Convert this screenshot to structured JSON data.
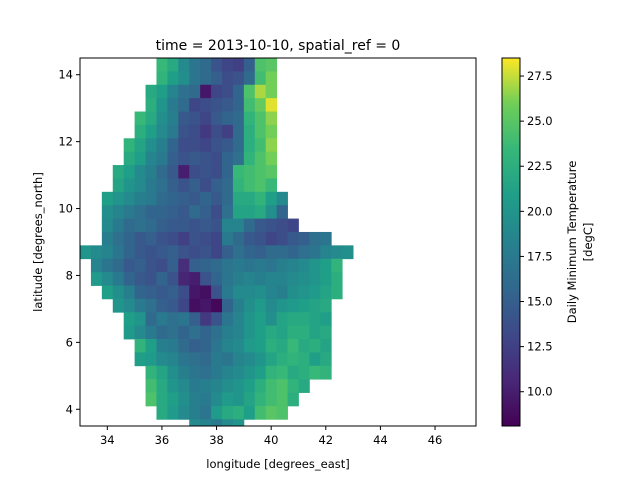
{
  "chart_data": {
    "type": "heatmap",
    "title": "time = 2013-10-10, spatial_ref = 0",
    "xlabel": "longitude [degrees_east]",
    "ylabel": "latitude [degrees_north]",
    "colorbar_label": "Daily Minimum Temperature",
    "colorbar_unit": "[degC]",
    "colormap": "viridis",
    "vmin": 8.1,
    "vmax": 28.5,
    "xlim": [
      33.0,
      47.5
    ],
    "ylim": [
      3.5,
      14.5
    ],
    "x_ticks": [
      34,
      36,
      38,
      40,
      42,
      44,
      46
    ],
    "y_ticks": [
      4,
      6,
      8,
      10,
      12,
      14
    ],
    "colorbar_ticks": [
      10.0,
      12.5,
      15.0,
      17.5,
      20.0,
      22.5,
      25.0,
      27.5
    ],
    "colorbar_tick_labels": [
      "10.0",
      "12.5",
      "15.0",
      "17.5",
      "20.0",
      "22.5",
      "25.0",
      "27.5"
    ],
    "grid_x0": 33.0,
    "grid_y0": 14.5,
    "cell_size": 0.4,
    "rows": [
      {
        "start": 7,
        "values": [
          23.5,
          22.0,
          19.0,
          17.0,
          16.0,
          14.0,
          13.0,
          12.5,
          15.0,
          24.5,
          25.0
        ]
      },
      {
        "start": 7,
        "values": [
          23.0,
          21.0,
          19.5,
          17.0,
          16.0,
          15.0,
          13.5,
          14.0,
          16.0,
          24.0,
          26.0
        ]
      },
      {
        "start": 6,
        "values": [
          22.0,
          21.0,
          18.5,
          16.5,
          16.0,
          9.5,
          13.0,
          13.5,
          15.5,
          24.5,
          27.0,
          26.0
        ]
      },
      {
        "start": 6,
        "values": [
          22.5,
          20.0,
          17.5,
          16.0,
          13.0,
          13.5,
          14.0,
          14.5,
          15.5,
          24.0,
          25.5,
          28.0
        ]
      },
      {
        "start": 5,
        "values": [
          23.5,
          22.0,
          19.5,
          18.0,
          14.5,
          14.0,
          13.0,
          14.5,
          15.5,
          16.0,
          23.0,
          24.5,
          26.5
        ]
      },
      {
        "start": 5,
        "values": [
          22.5,
          21.0,
          19.0,
          17.5,
          14.0,
          13.5,
          12.0,
          13.5,
          12.5,
          16.0,
          22.5,
          24.5,
          26.0
        ]
      },
      {
        "start": 4,
        "values": [
          23.0,
          21.5,
          19.5,
          18.0,
          15.5,
          13.5,
          13.5,
          13.0,
          14.0,
          14.5,
          16.0,
          22.5,
          24.0,
          26.5
        ]
      },
      {
        "start": 4,
        "values": [
          22.0,
          21.0,
          18.5,
          17.5,
          15.0,
          14.0,
          14.5,
          14.0,
          13.5,
          15.5,
          16.5,
          23.0,
          24.5,
          26.0
        ]
      },
      {
        "start": 3,
        "values": [
          22.0,
          21.0,
          19.0,
          18.0,
          16.0,
          14.5,
          10.0,
          13.5,
          14.0,
          13.5,
          15.5,
          23.5,
          24.0,
          24.5,
          25.0
        ]
      },
      {
        "start": 3,
        "values": [
          21.5,
          20.0,
          19.0,
          17.5,
          16.5,
          15.0,
          14.0,
          15.0,
          13.5,
          15.0,
          16.0,
          23.0,
          24.0,
          24.5,
          23.5
        ]
      },
      {
        "start": 2,
        "values": [
          21.0,
          20.0,
          19.0,
          18.0,
          17.5,
          16.0,
          15.5,
          15.0,
          14.5,
          15.5,
          14.5,
          16.0,
          22.0,
          22.0,
          23.0,
          21.0,
          19.0
        ]
      },
      {
        "start": 2,
        "values": [
          19.5,
          18.5,
          17.5,
          16.5,
          15.5,
          15.5,
          15.0,
          14.5,
          16.0,
          15.0,
          13.5,
          16.5,
          21.5,
          21.5,
          22.0,
          19.5,
          15.5
        ]
      },
      {
        "start": 2,
        "values": [
          19.0,
          17.5,
          16.0,
          16.5,
          16.0,
          15.0,
          14.5,
          14.5,
          14.0,
          14.5,
          14.0,
          18.5,
          18.5,
          16.0,
          14.5,
          14.0,
          13.5,
          13.0
        ]
      },
      {
        "start": 2,
        "values": [
          18.0,
          16.5,
          15.5,
          14.5,
          15.0,
          14.0,
          13.5,
          12.5,
          14.0,
          13.5,
          13.0,
          17.5,
          16.0,
          14.5,
          14.0,
          13.0,
          13.5,
          14.5,
          15.0,
          16.5,
          17.0
        ]
      },
      {
        "start": 0,
        "values": [
          20.0,
          19.0,
          18.5,
          17.0,
          15.5,
          14.5,
          14.0,
          14.5,
          15.0,
          14.0,
          13.5,
          14.0,
          13.0,
          15.0,
          16.5,
          15.5,
          15.0,
          16.0,
          16.0,
          15.5,
          16.5,
          17.0,
          18.5,
          19.0,
          19.5
        ]
      },
      {
        "start": 1,
        "values": [
          18.5,
          17.0,
          16.0,
          14.5,
          15.0,
          14.0,
          13.5,
          15.0,
          11.0,
          15.0,
          15.5,
          16.0,
          17.0,
          17.5,
          17.0,
          17.5,
          17.0,
          18.0,
          18.5,
          19.0,
          20.0,
          21.0,
          23.0
        ]
      },
      {
        "start": 1,
        "values": [
          20.5,
          19.0,
          17.5,
          15.5,
          14.5,
          14.0,
          15.5,
          14.0,
          10.5,
          10.0,
          14.0,
          15.5,
          17.0,
          18.0,
          18.5,
          18.0,
          18.5,
          18.5,
          19.0,
          19.5,
          20.0,
          21.0,
          22.5
        ]
      },
      {
        "start": 2,
        "values": [
          21.0,
          19.5,
          18.0,
          15.5,
          15.0,
          14.5,
          15.0,
          13.5,
          9.5,
          9.0,
          14.0,
          17.5,
          19.0,
          19.0,
          19.5,
          18.5,
          18.0,
          19.5,
          20.0,
          20.5,
          21.5,
          22.5
        ]
      },
      {
        "start": 3,
        "values": [
          20.0,
          19.0,
          17.5,
          16.5,
          15.0,
          14.5,
          13.0,
          9.0,
          9.5,
          8.5,
          15.5,
          18.0,
          19.5,
          20.5,
          19.0,
          20.0,
          20.5,
          21.0,
          21.5,
          22.0
        ]
      },
      {
        "start": 4,
        "values": [
          21.0,
          20.0,
          16.0,
          17.5,
          16.5,
          17.0,
          15.0,
          12.0,
          14.0,
          17.0,
          18.5,
          20.0,
          21.0,
          19.5,
          21.5,
          22.0,
          22.0,
          21.5,
          21.0
        ]
      },
      {
        "start": 4,
        "values": [
          20.5,
          19.0,
          17.5,
          16.0,
          16.5,
          15.5,
          16.5,
          15.5,
          16.5,
          18.0,
          18.5,
          20.0,
          21.0,
          22.0,
          21.5,
          22.5,
          22.5,
          21.5,
          22.0
        ]
      },
      {
        "start": 5,
        "values": [
          23.0,
          21.0,
          18.0,
          17.5,
          16.0,
          15.0,
          15.5,
          17.0,
          18.5,
          19.0,
          20.5,
          21.0,
          22.5,
          22.0,
          23.5,
          22.0,
          22.5,
          21.5
        ]
      },
      {
        "start": 5,
        "values": [
          21.0,
          20.5,
          19.0,
          18.5,
          17.0,
          16.5,
          16.0,
          17.5,
          17.0,
          18.5,
          19.0,
          20.0,
          21.5,
          22.5,
          23.0,
          22.5,
          21.0,
          22.0
        ]
      },
      {
        "start": 6,
        "values": [
          23.0,
          21.5,
          19.5,
          18.0,
          17.0,
          16.5,
          17.5,
          18.5,
          19.0,
          20.0,
          21.0,
          23.0,
          23.5,
          22.0,
          22.5,
          23.5,
          23.0
        ]
      },
      {
        "start": 6,
        "values": [
          24.0,
          22.0,
          20.0,
          19.0,
          17.5,
          18.0,
          18.5,
          19.5,
          20.0,
          21.0,
          22.5,
          24.0,
          24.5,
          23.0,
          22.0
        ]
      },
      {
        "start": 6,
        "values": [
          24.5,
          22.0,
          21.0,
          19.5,
          18.0,
          17.5,
          19.0,
          20.5,
          20.0,
          21.5,
          23.0,
          24.0,
          24.5,
          22.5
        ]
      },
      {
        "start": 7,
        "values": [
          22.0,
          20.5,
          19.0,
          18.0,
          17.0,
          20.5,
          22.0,
          22.5,
          21.0,
          24.0,
          25.0,
          24.5
        ]
      },
      {
        "start": 10,
        "values": [
          19.0,
          18.5,
          17.5,
          19.0,
          20.0
        ]
      }
    ]
  }
}
